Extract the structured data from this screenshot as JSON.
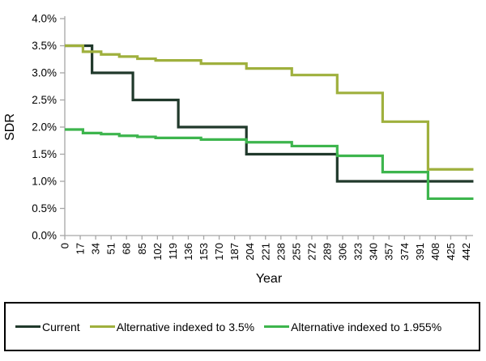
{
  "chart_data": {
    "type": "line",
    "subtype": "step",
    "title": "",
    "xlabel": "Year",
    "ylabel": "SDR",
    "xlim": [
      0,
      450
    ],
    "ylim": [
      0,
      4
    ],
    "grid": false,
    "legend_position": "bottom-boxed",
    "axis_color": "#a6a6a6",
    "x_ticks": [
      0,
      17,
      34,
      51,
      68,
      85,
      102,
      119,
      136,
      153,
      170,
      187,
      204,
      221,
      238,
      255,
      272,
      289,
      306,
      323,
      340,
      357,
      374,
      391,
      408,
      425,
      442
    ],
    "y_ticks": [
      {
        "value": 0.0,
        "label": "0.0%"
      },
      {
        "value": 0.5,
        "label": "0.5%"
      },
      {
        "value": 1.0,
        "label": "1.0%"
      },
      {
        "value": 1.5,
        "label": "1.5%"
      },
      {
        "value": 2.0,
        "label": "2.0%"
      },
      {
        "value": 2.5,
        "label": "2.5%"
      },
      {
        "value": 3.0,
        "label": "3.0%"
      },
      {
        "value": 3.5,
        "label": "3.5%"
      },
      {
        "value": 4.0,
        "label": "4.0%"
      }
    ],
    "series": [
      {
        "name": "Current",
        "color": "#20392b",
        "steps": [
          {
            "year": 0,
            "value": 3.5
          },
          {
            "year": 30,
            "value": 3.0
          },
          {
            "year": 75,
            "value": 2.5
          },
          {
            "year": 125,
            "value": 2.0
          },
          {
            "year": 200,
            "value": 1.5
          },
          {
            "year": 300,
            "value": 1.0
          }
        ],
        "end_year": 450
      },
      {
        "name": "Alternative indexed to 3.5%",
        "color": "#9fb03d",
        "steps": [
          {
            "year": 0,
            "value": 3.5
          },
          {
            "year": 20,
            "value": 3.39
          },
          {
            "year": 40,
            "value": 3.34
          },
          {
            "year": 60,
            "value": 3.3
          },
          {
            "year": 80,
            "value": 3.26
          },
          {
            "year": 100,
            "value": 3.23
          },
          {
            "year": 150,
            "value": 3.17
          },
          {
            "year": 200,
            "value": 3.08
          },
          {
            "year": 250,
            "value": 2.96
          },
          {
            "year": 300,
            "value": 2.63
          },
          {
            "year": 350,
            "value": 2.1
          },
          {
            "year": 400,
            "value": 1.22
          }
        ],
        "end_year": 450
      },
      {
        "name": "Alternative indexed to 1.955%",
        "color": "#3db54d",
        "steps": [
          {
            "year": 0,
            "value": 1.955
          },
          {
            "year": 20,
            "value": 1.89
          },
          {
            "year": 40,
            "value": 1.87
          },
          {
            "year": 60,
            "value": 1.84
          },
          {
            "year": 80,
            "value": 1.82
          },
          {
            "year": 100,
            "value": 1.8
          },
          {
            "year": 150,
            "value": 1.77
          },
          {
            "year": 200,
            "value": 1.72
          },
          {
            "year": 250,
            "value": 1.65
          },
          {
            "year": 300,
            "value": 1.47
          },
          {
            "year": 350,
            "value": 1.17
          },
          {
            "year": 400,
            "value": 0.68
          }
        ],
        "end_year": 450
      }
    ]
  }
}
